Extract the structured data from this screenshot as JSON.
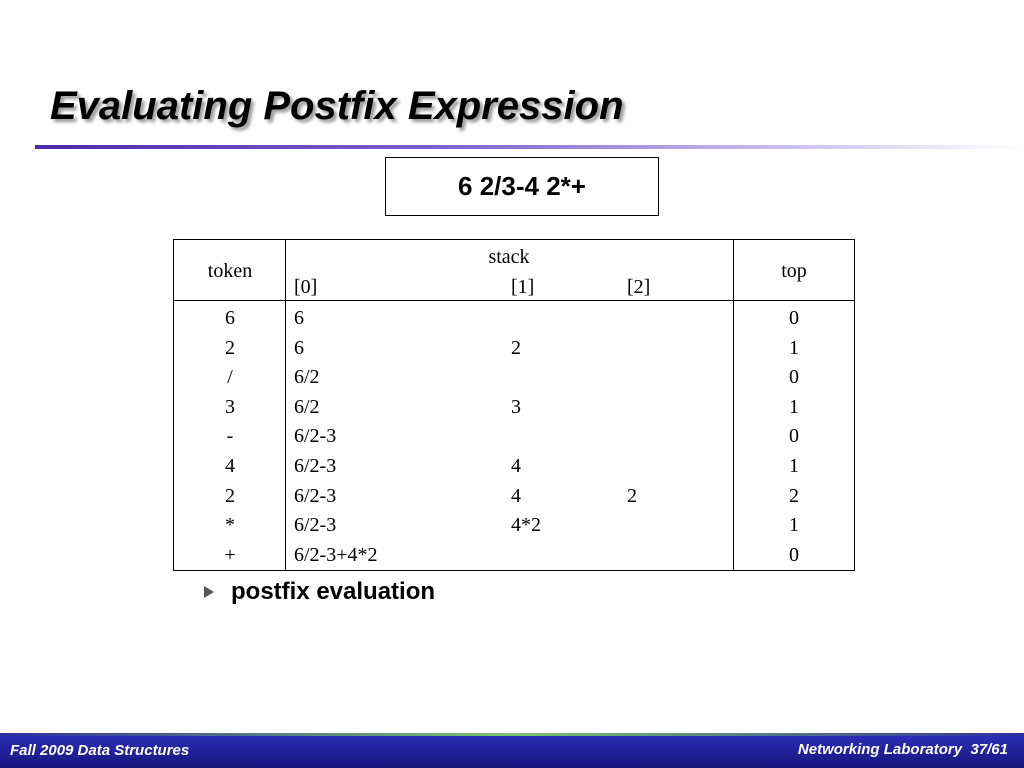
{
  "header": {
    "title": "Evaluating Postfix Expression"
  },
  "expression": "6 2/3-4 2*+",
  "table": {
    "headers": {
      "token": "token",
      "stack": "stack",
      "slots": [
        "[0]",
        "[1]",
        "[2]"
      ],
      "top": "top"
    },
    "rows": [
      {
        "token": "6",
        "stack": [
          "6"
        ],
        "top": 0
      },
      {
        "token": "2",
        "stack": [
          "6",
          "2"
        ],
        "top": 1
      },
      {
        "token": "/",
        "stack": [
          "6/2"
        ],
        "top": 0
      },
      {
        "token": "3",
        "stack": [
          "6/2",
          "3"
        ],
        "top": 1
      },
      {
        "token": "-",
        "stack": [
          "6/2-3"
        ],
        "top": 0
      },
      {
        "token": "4",
        "stack": [
          "6/2-3",
          "4"
        ],
        "top": 1
      },
      {
        "token": "2",
        "stack": [
          "6/2-3",
          "4",
          "2"
        ],
        "top": 2
      },
      {
        "token": "*",
        "stack": [
          "6/2-3",
          "4*2"
        ],
        "top": 1
      },
      {
        "token": "+",
        "stack": [
          "6/2-3+4*2"
        ],
        "top": 0
      }
    ]
  },
  "bullet": "postfix evaluation",
  "footer": {
    "left": "Fall 2009 Data Structures",
    "course": "Networking Laboratory",
    "page": "37/61"
  }
}
